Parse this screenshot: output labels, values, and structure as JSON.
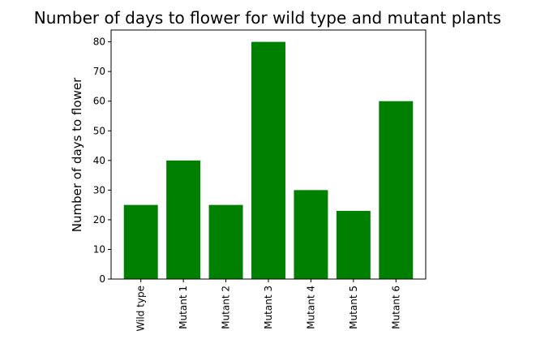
{
  "chart_data": {
    "type": "bar",
    "title": "Number of days to flower for wild type and mutant plants",
    "xlabel": "",
    "ylabel": "Number of days to flower",
    "categories": [
      "Wild type",
      "Mutant 1",
      "Mutant 2",
      "Mutant 3",
      "Mutant 4",
      "Mutant 5",
      "Mutant 6"
    ],
    "values": [
      25,
      40,
      25,
      80,
      30,
      23,
      60
    ],
    "ylim": [
      0,
      84
    ],
    "yticks": [
      0,
      10,
      20,
      30,
      40,
      50,
      60,
      70,
      80
    ],
    "bar_color": "#008000",
    "grid": false,
    "legend": "none"
  }
}
